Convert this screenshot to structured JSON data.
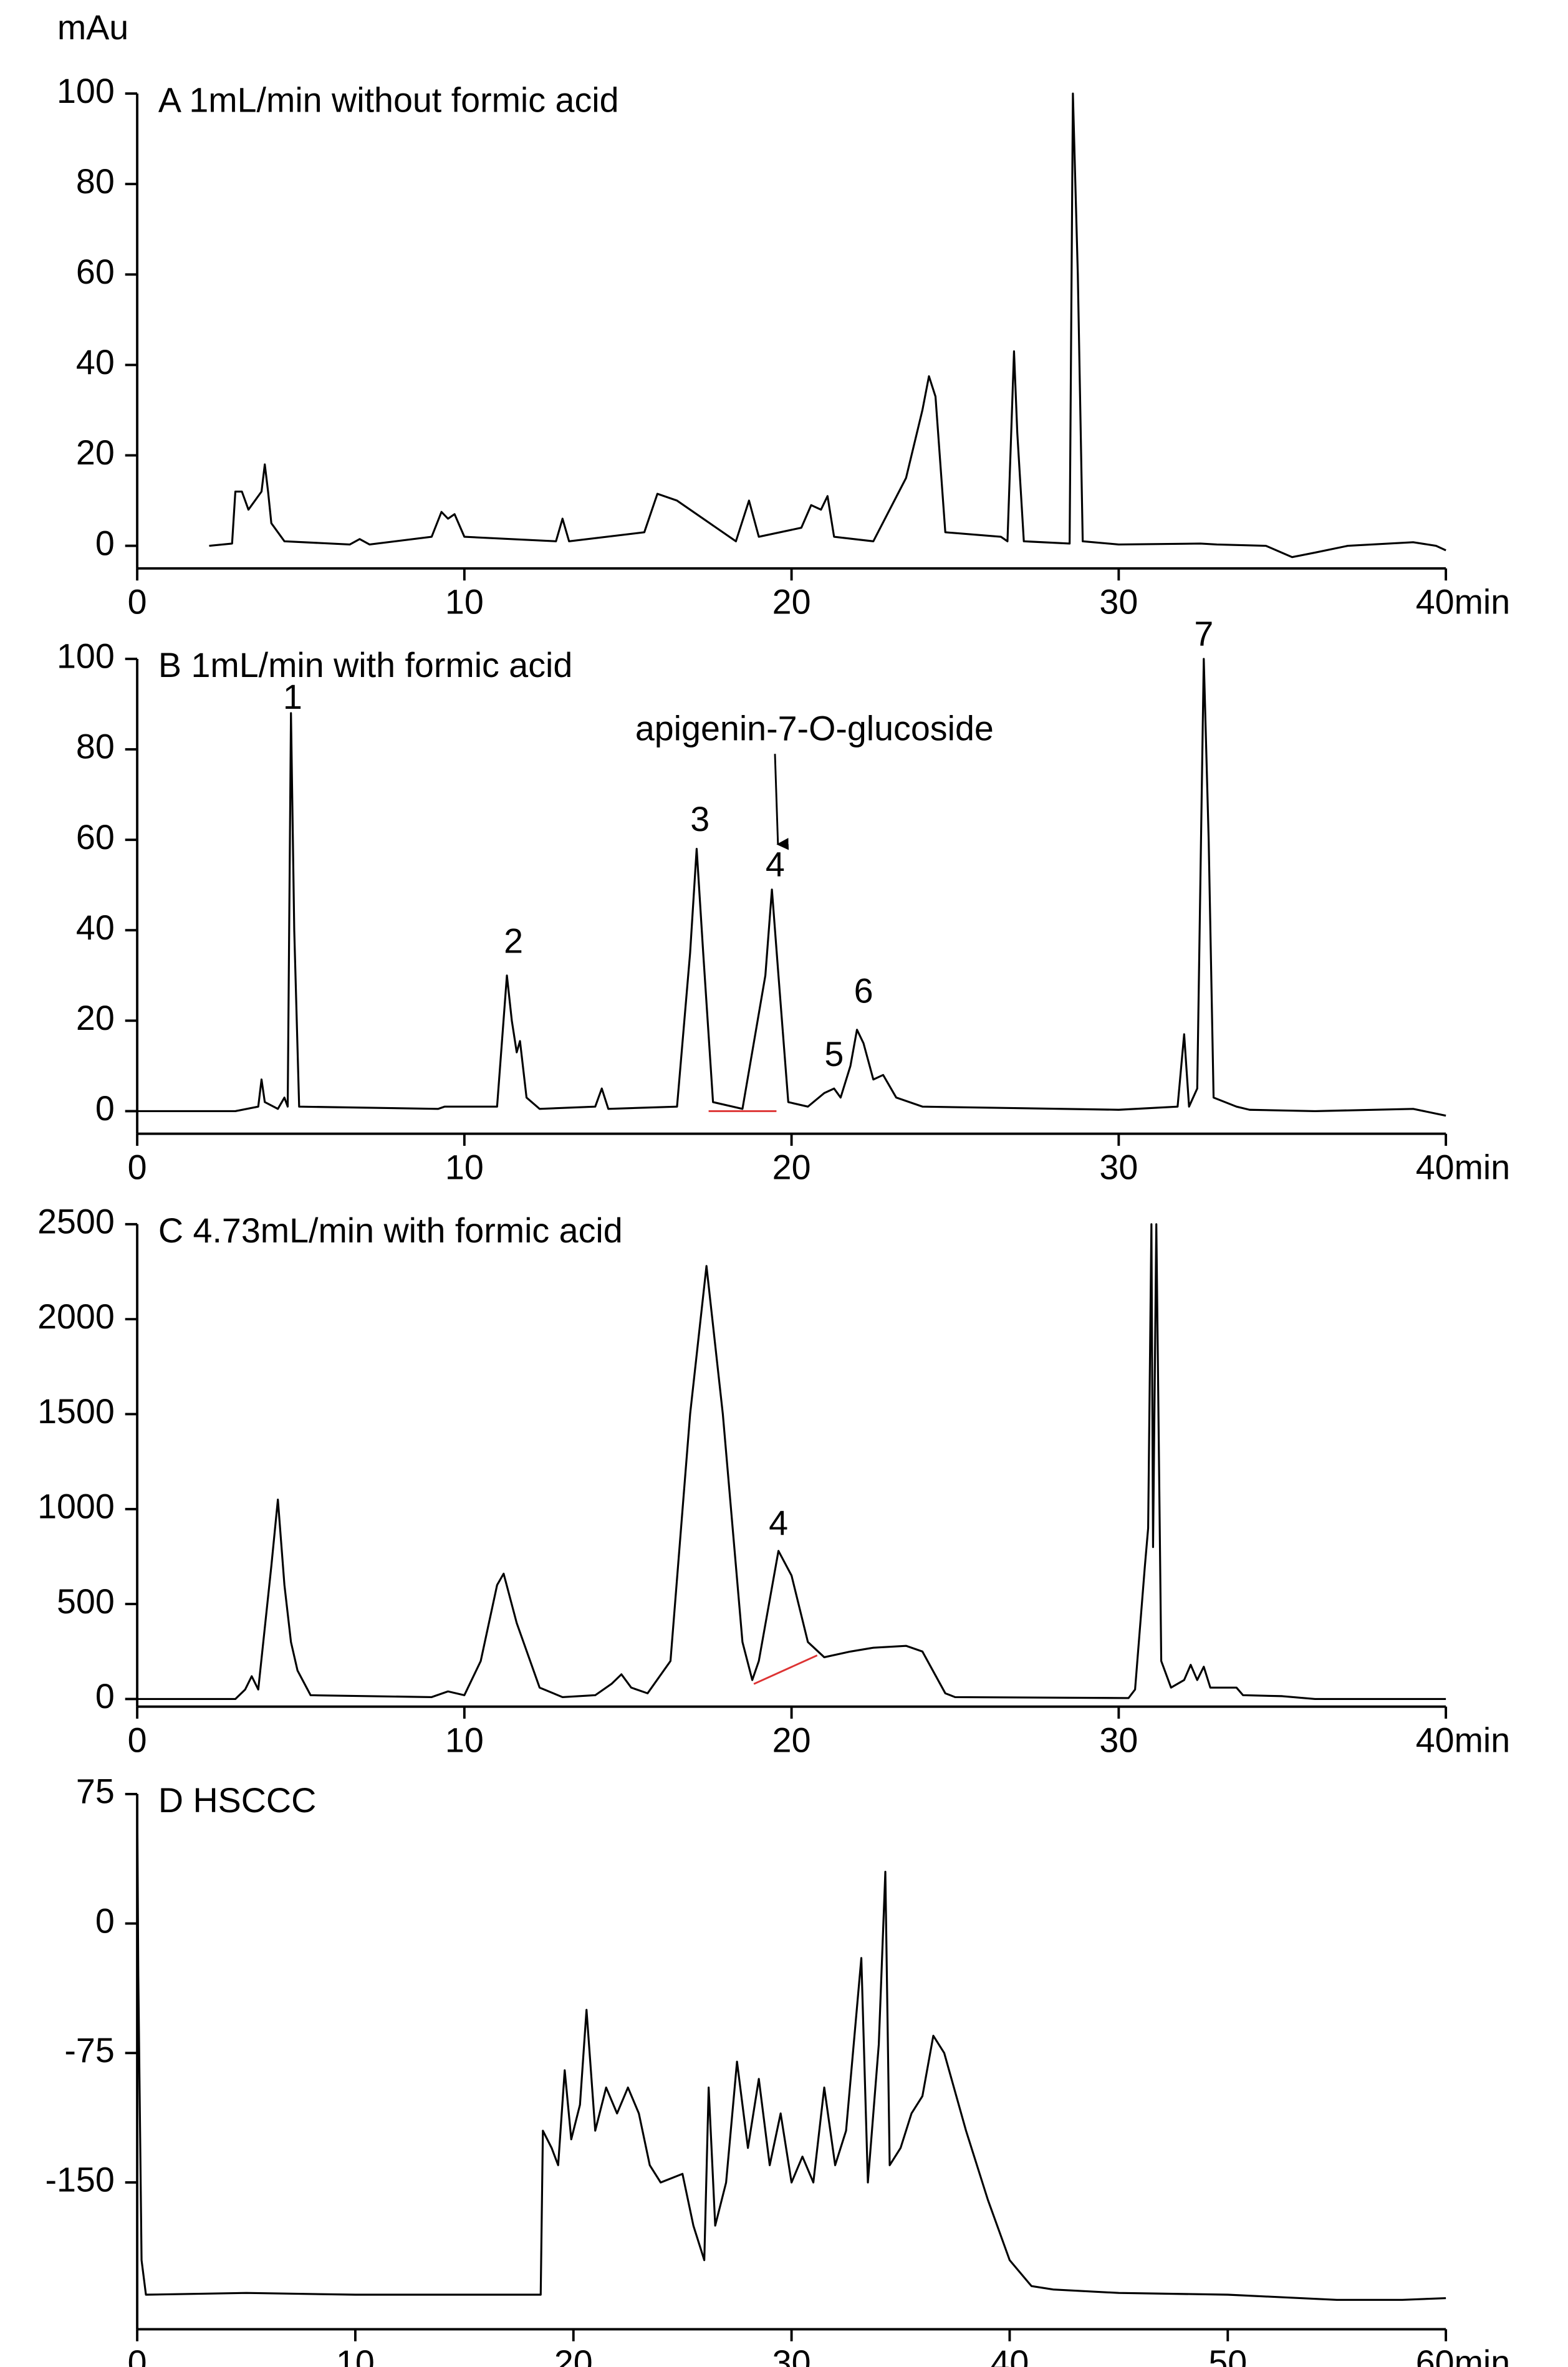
{
  "chart_data": [
    {
      "type": "line",
      "title": "A 1mL/min without formic acid",
      "ylabel": "mAu",
      "xlim": [
        0,
        40
      ],
      "ylim": [
        -5,
        100
      ],
      "xticks": [
        0,
        10,
        20,
        30,
        {
          "value": 40,
          "label": "40min"
        }
      ],
      "yticks": [
        0,
        20,
        40,
        60,
        80,
        100
      ],
      "color": "#000000",
      "x": [
        2.2,
        2.9,
        3.0,
        3.2,
        3.4,
        3.6,
        3.8,
        3.9,
        4.0,
        4.1,
        4.5,
        6.5,
        6.8,
        7.1,
        9.0,
        9.3,
        9.5,
        9.7,
        10.0,
        12.8,
        13.0,
        13.2,
        15.5,
        15.9,
        16.5,
        17.5,
        18.3,
        18.7,
        19.0,
        20.3,
        20.6,
        20.9,
        21.1,
        21.3,
        22.5,
        23.5,
        24.0,
        24.2,
        24.4,
        24.7,
        26.4,
        26.6,
        26.8,
        26.9,
        27.1,
        28.5,
        28.6,
        28.75,
        28.9,
        30.0,
        32.5,
        33.0,
        34.5,
        35.3,
        36.0,
        37.0,
        39.0,
        39.7,
        40.0
      ],
      "values": [
        0,
        0.5,
        12,
        12,
        8,
        10,
        12,
        18,
        12,
        5,
        1,
        0.3,
        1.5,
        0.3,
        2,
        7.5,
        6,
        7,
        2,
        1,
        6,
        1,
        3,
        11.5,
        10,
        5,
        1,
        10,
        2,
        4,
        9,
        8,
        11,
        2,
        1,
        15,
        30,
        37.5,
        33,
        3,
        2,
        1,
        43,
        25,
        1,
        0.5,
        100,
        60,
        1,
        0.3,
        0.5,
        0.3,
        0,
        -2.5,
        -1.5,
        0,
        0.8,
        0,
        -1
      ]
    },
    {
      "type": "line",
      "title": "B 1mL/min with formic acid",
      "xlim": [
        0,
        40
      ],
      "ylim": [
        -5,
        100
      ],
      "xticks": [
        0,
        10,
        20,
        30,
        {
          "value": 40,
          "label": "40min"
        }
      ],
      "yticks": [
        0,
        20,
        40,
        60,
        80,
        100
      ],
      "color": "#000000",
      "x": [
        0,
        3.0,
        3.7,
        3.8,
        3.9,
        4.3,
        4.5,
        4.6,
        4.7,
        4.8,
        4.95,
        9.2,
        9.4,
        11.0,
        11.3,
        11.45,
        11.6,
        11.7,
        11.9,
        12.3,
        14.0,
        14.2,
        14.4,
        16.5,
        16.9,
        17.1,
        17.3,
        17.6,
        18.5,
        19.2,
        19.4,
        19.6,
        19.9,
        20.5,
        21.0,
        21.3,
        21.5,
        21.8,
        22.0,
        22.2,
        22.5,
        22.8,
        23.2,
        24.0,
        30.0,
        31.8,
        32.0,
        32.15,
        32.4,
        32.6,
        32.75,
        32.9,
        33.6,
        34.0,
        36.0,
        39.0,
        40.0
      ],
      "values": [
        0,
        0,
        1,
        7,
        2,
        0.5,
        3,
        1,
        88,
        40,
        1,
        0.5,
        1,
        1,
        30,
        20,
        13,
        15.5,
        3,
        0.5,
        1,
        5,
        0.5,
        1,
        35,
        58,
        35,
        2,
        0.5,
        30,
        49,
        30,
        2,
        1,
        4,
        5,
        3,
        10,
        18,
        15,
        7,
        8,
        3,
        1,
        0.3,
        1,
        17,
        1,
        5,
        100,
        60,
        3,
        1,
        0.3,
        0,
        0.5,
        -1
      ],
      "annotations": [
        {
          "text": "1",
          "x": 4.75,
          "y": 91
        },
        {
          "text": "2",
          "x": 11.5,
          "y": 37
        },
        {
          "text": "3",
          "x": 17.2,
          "y": 64
        },
        {
          "text": "4",
          "x": 19.5,
          "y": 54
        },
        {
          "text": "5",
          "x": 21.3,
          "y": 12
        },
        {
          "text": "6",
          "x": 22.2,
          "y": 26
        },
        {
          "text": "7",
          "x": 32.6,
          "y": 105
        },
        {
          "text": "apigenin-7-O-glucoside",
          "x": 20.7,
          "y": 84
        }
      ]
    },
    {
      "type": "line",
      "title": "C 4.73mL/min with formic acid",
      "xlim": [
        0,
        40
      ],
      "ylim": [
        -40,
        2500
      ],
      "xticks": [
        0,
        10,
        20,
        30,
        {
          "value": 40,
          "label": "40min"
        }
      ],
      "yticks": [
        0,
        500,
        1000,
        1500,
        2000,
        2500
      ],
      "color": "#000000",
      "x": [
        0,
        3.0,
        3.3,
        3.5,
        3.7,
        4.1,
        4.3,
        4.5,
        4.7,
        4.9,
        5.3,
        9.0,
        9.5,
        10.0,
        10.5,
        11.0,
        11.2,
        11.6,
        12.3,
        13.0,
        14.0,
        14.5,
        14.8,
        15.1,
        15.6,
        16.3,
        16.9,
        17.4,
        17.9,
        18.5,
        18.8,
        19.0,
        19.6,
        20.0,
        20.5,
        21.0,
        21.8,
        22.5,
        23.5,
        24.0,
        24.7,
        25.0,
        30.3,
        30.5,
        30.8,
        30.9,
        31.0,
        31.05,
        31.15,
        31.3,
        31.6,
        32.0,
        32.2,
        32.4,
        32.6,
        32.8,
        33.6,
        33.8,
        35.0,
        36.0,
        40.0
      ],
      "values": [
        0,
        0,
        50,
        120,
        50,
        700,
        1050,
        600,
        300,
        150,
        20,
        10,
        40,
        20,
        200,
        600,
        660,
        400,
        60,
        10,
        20,
        80,
        130,
        60,
        30,
        200,
        1500,
        2280,
        1500,
        300,
        100,
        200,
        780,
        650,
        300,
        220,
        250,
        270,
        280,
        250,
        30,
        10,
        5,
        50,
        700,
        900,
        2500,
        800,
        2500,
        200,
        60,
        100,
        180,
        100,
        170,
        60,
        60,
        20,
        15,
        0,
        0
      ],
      "annotations": [
        {
          "text": "4",
          "x": 19.6,
          "y": 913
        }
      ]
    },
    {
      "type": "line",
      "title": "D HSCCC",
      "xlim": [
        0,
        60
      ],
      "ylim": [
        -235,
        75
      ],
      "xticks": [
        0,
        10,
        20,
        30,
        40,
        50,
        {
          "value": 60,
          "label": "60min"
        }
      ],
      "yticks": [
        -150,
        -75,
        0,
        75
      ],
      "color": "#000000",
      "x": [
        0,
        0.05,
        0.2,
        0.4,
        5,
        10,
        18.5,
        18.6,
        19,
        19.3,
        19.6,
        19.9,
        20.3,
        20.6,
        21,
        21.5,
        22,
        22.5,
        23,
        23.5,
        24,
        25,
        25.5,
        26,
        26.2,
        26.5,
        27,
        27.5,
        28,
        28.5,
        29,
        29.5,
        30,
        30.5,
        31,
        31.5,
        32,
        32.5,
        33.2,
        33.5,
        34,
        34.3,
        34.5,
        35,
        35.5,
        36,
        36.5,
        37,
        38,
        39,
        40,
        41,
        42,
        45,
        50,
        55,
        58,
        60
      ],
      "values": [
        75,
        -30,
        -195,
        -215,
        -214,
        -215,
        -215,
        -120,
        -130,
        -140,
        -85,
        -125,
        -105,
        -50,
        -120,
        -95,
        -110,
        -95,
        -110,
        -140,
        -150,
        -145,
        -175,
        -195,
        -95,
        -175,
        -150,
        -80,
        -130,
        -90,
        -140,
        -110,
        -150,
        -135,
        -150,
        -95,
        -140,
        -120,
        -20,
        -150,
        -70,
        30,
        -140,
        -130,
        -110,
        -100,
        -65,
        -75,
        -120,
        -160,
        -195,
        -210,
        -212,
        -214,
        -215,
        -218,
        -218,
        -217
      ]
    }
  ]
}
